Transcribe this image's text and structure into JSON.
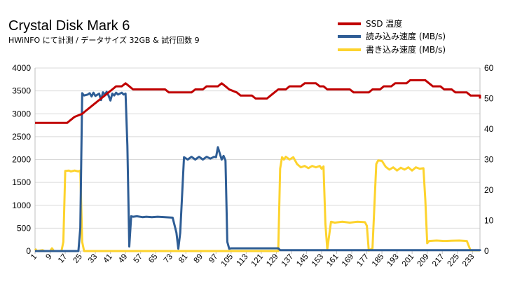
{
  "chart_data": {
    "type": "line",
    "title": "Crystal Disk Mark 6",
    "subtitle": "HWiNFO にて計測 / データサイズ 32GB & 試行回数 9",
    "x_start": 1,
    "x_end": 237,
    "x_ticks": [
      1,
      9,
      17,
      25,
      33,
      41,
      49,
      57,
      65,
      73,
      81,
      89,
      97,
      105,
      113,
      121,
      129,
      137,
      145,
      153,
      161,
      169,
      177,
      185,
      193,
      201,
      209,
      217,
      225,
      233
    ],
    "y_left": {
      "min": 0,
      "max": 4000,
      "step": 500,
      "ticks": [
        "0",
        "500",
        "1000",
        "1500",
        "2000",
        "2500",
        "3000",
        "3500",
        "4000"
      ]
    },
    "y_right": {
      "min": 0,
      "max": 60,
      "step": 10,
      "ticks": [
        "0",
        "10",
        "20",
        "30",
        "40",
        "50",
        "60"
      ]
    },
    "grid": true,
    "legend_position": "top-right",
    "series": [
      {
        "name": "SSD 温度",
        "axis": "right",
        "color": "#c00000",
        "points": [
          [
            1,
            42
          ],
          [
            18,
            42
          ],
          [
            20,
            43
          ],
          [
            22,
            44
          ],
          [
            26,
            45
          ],
          [
            28,
            46
          ],
          [
            30,
            47
          ],
          [
            32,
            48
          ],
          [
            34,
            49
          ],
          [
            36,
            50
          ],
          [
            38,
            51
          ],
          [
            40,
            52
          ],
          [
            42,
            53
          ],
          [
            44,
            54
          ],
          [
            47,
            54
          ],
          [
            49,
            55
          ],
          [
            51,
            54
          ],
          [
            53,
            53
          ],
          [
            70,
            53
          ],
          [
            72,
            52
          ],
          [
            84,
            52
          ],
          [
            86,
            53
          ],
          [
            90,
            53
          ],
          [
            92,
            54
          ],
          [
            98,
            54
          ],
          [
            100,
            55
          ],
          [
            102,
            54
          ],
          [
            104,
            53
          ],
          [
            108,
            52
          ],
          [
            110,
            51
          ],
          [
            116,
            51
          ],
          [
            118,
            50
          ],
          [
            124,
            50
          ],
          [
            126,
            51
          ],
          [
            128,
            52
          ],
          [
            130,
            53
          ],
          [
            134,
            53
          ],
          [
            136,
            54
          ],
          [
            142,
            54
          ],
          [
            144,
            55
          ],
          [
            150,
            55
          ],
          [
            152,
            54
          ],
          [
            154,
            54
          ],
          [
            156,
            53
          ],
          [
            168,
            53
          ],
          [
            170,
            52
          ],
          [
            178,
            52
          ],
          [
            180,
            53
          ],
          [
            184,
            53
          ],
          [
            186,
            54
          ],
          [
            190,
            54
          ],
          [
            192,
            55
          ],
          [
            198,
            55
          ],
          [
            200,
            56
          ],
          [
            208,
            56
          ],
          [
            210,
            55
          ],
          [
            212,
            54
          ],
          [
            216,
            54
          ],
          [
            218,
            53
          ],
          [
            222,
            53
          ],
          [
            224,
            52
          ],
          [
            230,
            52
          ],
          [
            232,
            51
          ],
          [
            237,
            51
          ],
          [
            238,
            50
          ]
        ]
      },
      {
        "name": "読み込み速度 (MB/s)",
        "axis": "left",
        "color": "#2e5d95",
        "points": [
          [
            1,
            0
          ],
          [
            24,
            0
          ],
          [
            25,
            500
          ],
          [
            26,
            3450
          ],
          [
            27,
            3400
          ],
          [
            29,
            3420
          ],
          [
            30,
            3450
          ],
          [
            31,
            3380
          ],
          [
            32,
            3460
          ],
          [
            33,
            3390
          ],
          [
            35,
            3440
          ],
          [
            36,
            3300
          ],
          [
            37,
            3470
          ],
          [
            38,
            3420
          ],
          [
            39,
            3480
          ],
          [
            40,
            3400
          ],
          [
            41,
            3290
          ],
          [
            42,
            3440
          ],
          [
            43,
            3400
          ],
          [
            44,
            3460
          ],
          [
            45,
            3420
          ],
          [
            47,
            3460
          ],
          [
            48,
            3420
          ],
          [
            49,
            3440
          ],
          [
            50,
            2300
          ],
          [
            51,
            100
          ],
          [
            52,
            760
          ],
          [
            53,
            750
          ],
          [
            55,
            760
          ],
          [
            58,
            740
          ],
          [
            60,
            750
          ],
          [
            63,
            740
          ],
          [
            66,
            750
          ],
          [
            70,
            740
          ],
          [
            74,
            730
          ],
          [
            76,
            400
          ],
          [
            77,
            50
          ],
          [
            78,
            400
          ],
          [
            80,
            2050
          ],
          [
            82,
            2000
          ],
          [
            84,
            2060
          ],
          [
            86,
            2000
          ],
          [
            88,
            2060
          ],
          [
            90,
            2000
          ],
          [
            92,
            2060
          ],
          [
            94,
            2020
          ],
          [
            96,
            2060
          ],
          [
            97,
            2050
          ],
          [
            98,
            2270
          ],
          [
            99,
            2130
          ],
          [
            100,
            2000
          ],
          [
            101,
            2080
          ],
          [
            102,
            1980
          ],
          [
            103,
            200
          ],
          [
            104,
            50
          ],
          [
            105,
            60
          ],
          [
            130,
            60
          ],
          [
            131,
            20
          ],
          [
            237,
            20
          ],
          [
            238,
            0
          ]
        ]
      },
      {
        "name": "書き込み速度 (MB/s)",
        "axis": "left",
        "color": "#fdd32d",
        "points": [
          [
            1,
            50
          ],
          [
            2,
            0
          ],
          [
            5,
            20
          ],
          [
            6,
            0
          ],
          [
            9,
            0
          ],
          [
            10,
            60
          ],
          [
            11,
            0
          ],
          [
            15,
            0
          ],
          [
            16,
            200
          ],
          [
            17,
            1750
          ],
          [
            19,
            1760
          ],
          [
            20,
            1740
          ],
          [
            22,
            1760
          ],
          [
            24,
            1740
          ],
          [
            25,
            1760
          ],
          [
            26,
            200
          ],
          [
            27,
            0
          ],
          [
            130,
            0
          ],
          [
            131,
            1800
          ],
          [
            132,
            2050
          ],
          [
            133,
            2000
          ],
          [
            134,
            2060
          ],
          [
            136,
            2000
          ],
          [
            138,
            2050
          ],
          [
            140,
            1900
          ],
          [
            142,
            1830
          ],
          [
            144,
            1860
          ],
          [
            146,
            1810
          ],
          [
            148,
            1860
          ],
          [
            150,
            1830
          ],
          [
            152,
            1860
          ],
          [
            153,
            1800
          ],
          [
            154,
            1850
          ],
          [
            155,
            600
          ],
          [
            156,
            40
          ],
          [
            158,
            640
          ],
          [
            160,
            620
          ],
          [
            164,
            640
          ],
          [
            168,
            620
          ],
          [
            172,
            640
          ],
          [
            176,
            630
          ],
          [
            177,
            550
          ],
          [
            178,
            10
          ],
          [
            180,
            60
          ],
          [
            182,
            1900
          ],
          [
            183,
            1980
          ],
          [
            185,
            1970
          ],
          [
            187,
            1840
          ],
          [
            189,
            1780
          ],
          [
            191,
            1830
          ],
          [
            193,
            1760
          ],
          [
            195,
            1820
          ],
          [
            197,
            1780
          ],
          [
            199,
            1830
          ],
          [
            201,
            1760
          ],
          [
            203,
            1830
          ],
          [
            205,
            1800
          ],
          [
            207,
            1810
          ],
          [
            208,
            1120
          ],
          [
            209,
            170
          ],
          [
            210,
            220
          ],
          [
            214,
            230
          ],
          [
            218,
            220
          ],
          [
            222,
            225
          ],
          [
            226,
            230
          ],
          [
            230,
            220
          ],
          [
            232,
            15
          ],
          [
            237,
            15
          ],
          [
            238,
            0
          ]
        ]
      }
    ]
  }
}
